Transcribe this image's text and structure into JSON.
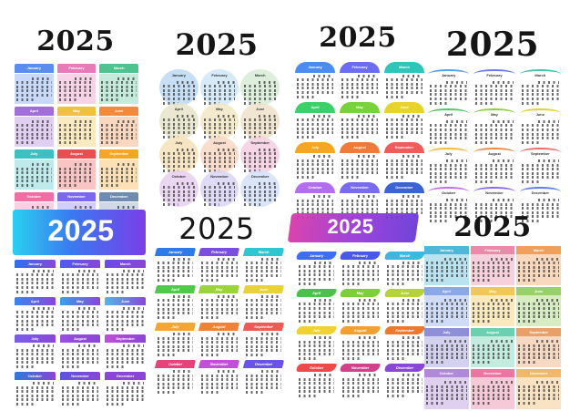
{
  "calendars": [
    {
      "year": "2025",
      "months": [
        "January",
        "February",
        "March",
        "April",
        "May",
        "June",
        "July",
        "August",
        "September",
        "October",
        "November",
        "December"
      ],
      "colors": [
        "#5b8def",
        "#e57bb8",
        "#4fc38f",
        "#a26fd6",
        "#f0c040",
        "#f08a3e",
        "#3cc0c6",
        "#e94f4f",
        "#f5a623",
        "#ef6fa5",
        "#7b68ee",
        "#6f8caf"
      ]
    },
    {
      "year": "2025",
      "months": [
        "January",
        "February",
        "March",
        "April",
        "May",
        "June",
        "July",
        "August",
        "September",
        "October",
        "November",
        "December"
      ],
      "colors": [
        "#bcd9f2",
        "#cfe6f7",
        "#d7ecd6",
        "#e7e4c9",
        "#f2e8c6",
        "#efe2c9",
        "#f6e2b8",
        "#f8d7c4",
        "#f4cfe2",
        "#e8cff0",
        "#d9d5f5",
        "#d3e0f8"
      ]
    },
    {
      "year": "2025",
      "months": [
        "January",
        "February",
        "March",
        "April",
        "May",
        "June",
        "July",
        "August",
        "September",
        "October",
        "November",
        "December"
      ],
      "colors": [
        "#4a8cf0",
        "#6c6cf2",
        "#2ec6b8",
        "#3bd06a",
        "#78d23c",
        "#e8d22c",
        "#f5a623",
        "#f07a3a",
        "#f05b5b",
        "#b36ef0",
        "#7a6af0",
        "#3b63d6"
      ]
    },
    {
      "year": "2025",
      "months": [
        "January",
        "February",
        "March",
        "April",
        "May",
        "June",
        "July",
        "August",
        "September",
        "October",
        "November",
        "December"
      ],
      "colors": [
        "#4fa1f0",
        "#6a7cf2",
        "#3ec8a8",
        "#56c66a",
        "#8fd04a",
        "#e0d23a",
        "#f3b83c",
        "#f0894a",
        "#ef6b6b",
        "#c070e8",
        "#8a6cf0",
        "#5a7cf0"
      ]
    },
    {
      "year": "2025",
      "months": [
        "January",
        "February",
        "March",
        "April",
        "May",
        "June",
        "July",
        "August",
        "September",
        "October",
        "November",
        "December"
      ],
      "colors": [
        "#2f6ef0",
        "#4c5cf0",
        "#6a4ce8",
        "#3a86f0",
        "#3aa0e8",
        "#4fb8e8",
        "#7a5ee8",
        "#9a4fe0",
        "#c04fd8",
        "#2e7ad8",
        "#5a54e0",
        "#8a46d6"
      ]
    },
    {
      "year": "2025",
      "months": [
        "January",
        "February",
        "March",
        "April",
        "May",
        "June",
        "July",
        "August",
        "September",
        "October",
        "November",
        "December"
      ],
      "colors": [
        "#2e7ae8",
        "#7a4fe0",
        "#2ec6d0",
        "#4fc84c",
        "#9cd23a",
        "#e8d23a",
        "#f2a830",
        "#f08238",
        "#ef5a52",
        "#e8427a",
        "#c24fd8",
        "#6a54e8"
      ]
    },
    {
      "year": "2025",
      "months": [
        "January",
        "February",
        "March",
        "April",
        "May",
        "June",
        "July",
        "August",
        "September",
        "October",
        "November",
        "December"
      ],
      "colors": [
        "#3f6ff0",
        "#4a58e8",
        "#39b8e0",
        "#48c24a",
        "#7bd03a",
        "#b6d23a",
        "#f0d22e",
        "#f2a02e",
        "#f0782e",
        "#ef4a4a",
        "#d2428a",
        "#8a46d6"
      ]
    },
    {
      "year": "2025",
      "months": [
        "January",
        "February",
        "March",
        "April",
        "May",
        "June",
        "July",
        "August",
        "September",
        "October",
        "November",
        "December"
      ],
      "colors": [
        "#4fb8d8",
        "#e88aa8",
        "#f0a05a",
        "#8aa8e8",
        "#f0c85a",
        "#9ad06a",
        "#8f8fd8",
        "#6ad0b0",
        "#e8a06a",
        "#b08ad8",
        "#e878a0",
        "#f0b86a"
      ]
    }
  ]
}
